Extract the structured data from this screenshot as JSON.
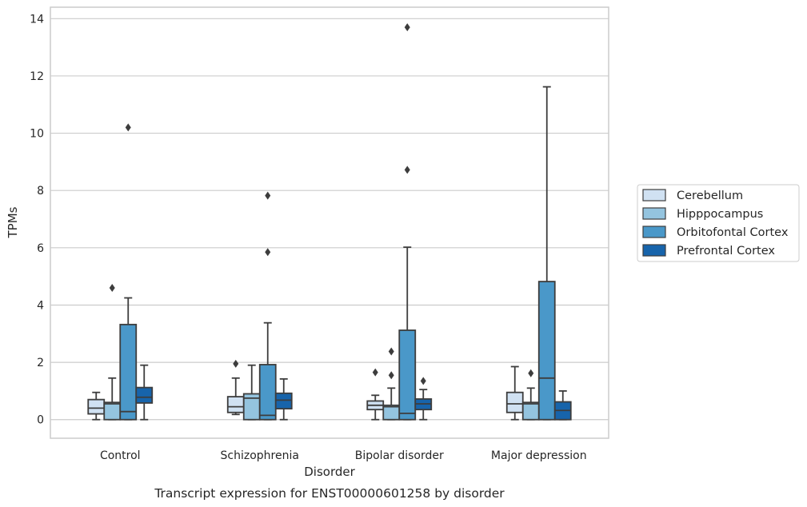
{
  "chart_data": {
    "type": "box",
    "caption": "Transcript expression for ENST00000601258 by disorder",
    "xlabel": "Disorder",
    "ylabel": "TPMs",
    "ylim": [
      -0.65,
      14.4
    ],
    "yticks": [
      0,
      2,
      4,
      6,
      8,
      10,
      12,
      14
    ],
    "grid": true,
    "legend_position": "right",
    "categories": [
      "Control",
      "Schizophrenia",
      "Bipolar disorder",
      "Major depression"
    ],
    "series": [
      {
        "name": "Cerebellum",
        "color": "#d0e1f2",
        "boxes": [
          {
            "whisker_low": 0.0,
            "q1": 0.2,
            "median": 0.4,
            "q3": 0.7,
            "whisker_high": 0.95,
            "outliers": []
          },
          {
            "whisker_low": 0.18,
            "q1": 0.25,
            "median": 0.45,
            "q3": 0.8,
            "whisker_high": 1.45,
            "outliers": [
              1.95
            ]
          },
          {
            "whisker_low": 0.0,
            "q1": 0.35,
            "median": 0.5,
            "q3": 0.65,
            "whisker_high": 0.85,
            "outliers": [
              1.65
            ]
          },
          {
            "whisker_low": 0.0,
            "q1": 0.25,
            "median": 0.55,
            "q3": 0.95,
            "whisker_high": 1.85,
            "outliers": []
          }
        ]
      },
      {
        "name": "Hipppocampus",
        "color": "#94c4df",
        "boxes": [
          {
            "whisker_low": 0.0,
            "q1": 0.0,
            "median": 0.55,
            "q3": 0.6,
            "whisker_high": 1.45,
            "outliers": [
              4.6
            ]
          },
          {
            "whisker_low": 0.0,
            "q1": 0.0,
            "median": 0.75,
            "q3": 0.9,
            "whisker_high": 1.9,
            "outliers": []
          },
          {
            "whisker_low": 0.0,
            "q1": 0.0,
            "median": 0.45,
            "q3": 0.5,
            "whisker_high": 1.1,
            "outliers": [
              1.55,
              2.38
            ]
          },
          {
            "whisker_low": 0.0,
            "q1": 0.0,
            "median": 0.55,
            "q3": 0.6,
            "whisker_high": 1.1,
            "outliers": [
              1.62
            ]
          }
        ]
      },
      {
        "name": "Orbitofontal Cortex",
        "color": "#4a98c9",
        "boxes": [
          {
            "whisker_low": 0.0,
            "q1": 0.0,
            "median": 0.28,
            "q3": 3.32,
            "whisker_high": 4.25,
            "outliers": [
              10.2
            ]
          },
          {
            "whisker_low": 0.0,
            "q1": 0.0,
            "median": 0.15,
            "q3": 1.92,
            "whisker_high": 3.38,
            "outliers": [
              5.85,
              7.82
            ]
          },
          {
            "whisker_low": 0.0,
            "q1": 0.0,
            "median": 0.22,
            "q3": 3.12,
            "whisker_high": 6.02,
            "outliers": [
              8.72,
              13.7
            ]
          },
          {
            "whisker_low": 0.0,
            "q1": 0.0,
            "median": 1.45,
            "q3": 4.82,
            "whisker_high": 11.62,
            "outliers": []
          }
        ]
      },
      {
        "name": "Prefrontal Cortex",
        "color": "#1764ab",
        "boxes": [
          {
            "whisker_low": 0.0,
            "q1": 0.58,
            "median": 0.78,
            "q3": 1.12,
            "whisker_high": 1.9,
            "outliers": []
          },
          {
            "whisker_low": 0.0,
            "q1": 0.38,
            "median": 0.68,
            "q3": 0.92,
            "whisker_high": 1.42,
            "outliers": []
          },
          {
            "whisker_low": 0.0,
            "q1": 0.35,
            "median": 0.55,
            "q3": 0.72,
            "whisker_high": 1.05,
            "outliers": [
              1.35
            ]
          },
          {
            "whisker_low": 0.0,
            "q1": 0.0,
            "median": 0.32,
            "q3": 0.62,
            "whisker_high": 1.0,
            "outliers": []
          }
        ]
      }
    ]
  }
}
